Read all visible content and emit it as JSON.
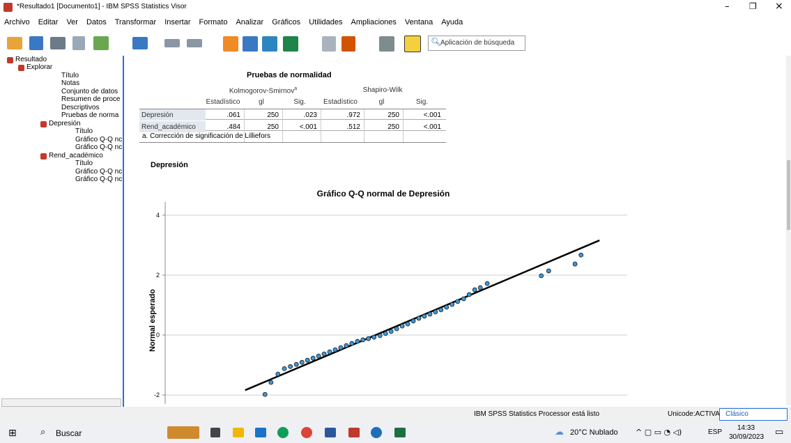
{
  "window": {
    "title": "*Resultado1 [Documento1] - IBM SPSS Statistics Visor"
  },
  "menu": [
    "Archivo",
    "Editar",
    "Ver",
    "Datos",
    "Transformar",
    "Insertar",
    "Formato",
    "Analizar",
    "Gráficos",
    "Utilidades",
    "Ampliaciones",
    "Ventana",
    "Ayuda"
  ],
  "search_placeholder": "Aplicación de búsqueda",
  "tree": [
    "Resultado",
    "Explorar",
    "Título",
    "Notas",
    "Conjunto de datos",
    "Resumen de proce",
    "Descriptivos",
    "Pruebas de norma",
    "Depresión",
    "Título",
    "Gráfico Q-Q nc",
    "Gráfico Q-Q nc",
    "Rend_académico",
    "Título",
    "Gráfico Q-Q nc",
    "Gráfico Q-Q nc"
  ],
  "table": {
    "title": "Pruebas de normalidad",
    "groups": [
      "Kolmogorov-Smirnov",
      "Shapiro-Wilk"
    ],
    "group_note": "a",
    "columns": [
      "Estadístico",
      "gl",
      "Sig.",
      "Estadístico",
      "gl",
      "Sig."
    ],
    "rows": [
      [
        "Depresión",
        ".061",
        "250",
        ".023",
        ".972",
        "250",
        "<.001"
      ],
      [
        "Rend_académico",
        ".484",
        "250",
        "<.001",
        ".512",
        "250",
        "<.001"
      ]
    ],
    "footnote": "a. Corrección de significación de Lilliefors"
  },
  "section_heading": "Depresión",
  "chart_data": {
    "type": "scatter",
    "title": "Gráfico Q-Q normal de Depresión",
    "y_label": "Normal esperado",
    "x": [
      21.6,
      22.9,
      24.4,
      25.8,
      27.1,
      28.4,
      29.6,
      30.8,
      32.0,
      33.2,
      34.4,
      35.6,
      36.8,
      38.0,
      39.2,
      40.4,
      41.6,
      42.8,
      44.0,
      45.2,
      46.5,
      47.7,
      48.9,
      50.1,
      51.3,
      52.5,
      53.7,
      54.9,
      56.1,
      57.3,
      58.5,
      59.7,
      60.9,
      62.1,
      63.3,
      64.6,
      65.8,
      67.0,
      68.2,
      69.7,
      81.4,
      83.0,
      88.7,
      90.0
    ],
    "values": [
      -1.98,
      -1.58,
      -1.3,
      -1.12,
      -1.05,
      -0.98,
      -0.91,
      -0.84,
      -0.77,
      -0.7,
      -0.63,
      -0.56,
      -0.49,
      -0.42,
      -0.35,
      -0.28,
      -0.21,
      -0.16,
      -0.12,
      -0.07,
      -0.02,
      0.05,
      0.12,
      0.21,
      0.3,
      0.37,
      0.47,
      0.56,
      0.63,
      0.7,
      0.77,
      0.84,
      0.93,
      1.02,
      1.12,
      1.21,
      1.35,
      1.51,
      1.58,
      1.72,
      1.98,
      2.14,
      2.37,
      2.67
    ],
    "color": "#3d97d9",
    "reference_line": {
      "x": [
        17.3,
        94.0
      ],
      "values": [
        -1.84,
        3.16
      ],
      "color": "#000000"
    },
    "xlim": [
      0,
      100
    ],
    "ylim": [
      -2.3,
      4.44
    ],
    "yticks": [
      -2,
      0,
      2,
      4
    ],
    "grid": true
  },
  "status": {
    "message": "IBM SPSS Statistics Processor está listo",
    "encoding": "Unicode:ACTIVADO",
    "mode": "Clásico"
  },
  "taskbar": {
    "search": "Buscar",
    "weather": "20°C Nublado",
    "language": "ESP",
    "time": "14:33",
    "date": "30/09/2023"
  }
}
